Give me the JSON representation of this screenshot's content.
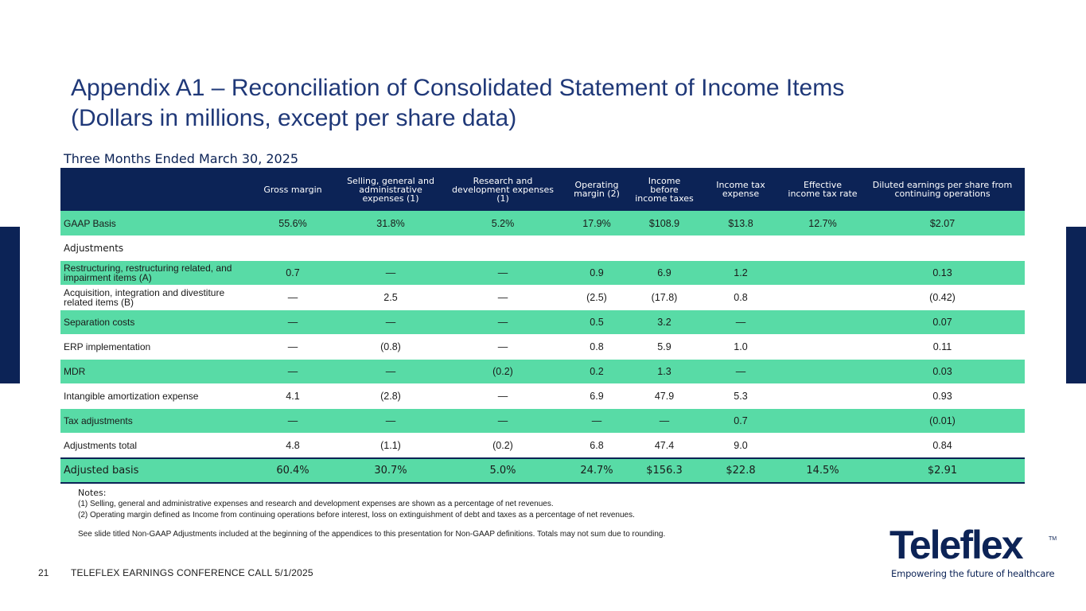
{
  "title": {
    "line1": "Appendix A1 – Reconciliation of Consolidated Statement of Income Items",
    "line2": "(Dollars in millions, except per share data)"
  },
  "period": "Three Months Ended March 30, 2025",
  "table": {
    "headers": [
      "",
      "Gross margin",
      "Selling, general and administrative expenses (1)",
      "Research and development expenses (1)",
      "Operating margin (2)",
      "Income before income taxes",
      "Income tax expense",
      "Effective income tax rate",
      "Diluted earnings per share from continuing operations"
    ],
    "gaap": [
      "GAAP Basis",
      "55.6%",
      "31.8%",
      "5.2%",
      "17.9%",
      "$108.9",
      "$13.8",
      "12.7%",
      "$2.07"
    ],
    "adjustments_label": "Adjustments",
    "rows": [
      [
        "Restructuring, restructuring related, and impairment items (A)",
        "0.7",
        "—",
        "—",
        "0.9",
        "6.9",
        "1.2",
        "",
        "0.13"
      ],
      [
        "Acquisition, integration and divestiture related items (B)",
        "—",
        "2.5",
        "—",
        "(2.5)",
        "(17.8)",
        "0.8",
        "",
        "(0.42)"
      ],
      [
        "Separation costs",
        "—",
        "—",
        "—",
        "0.5",
        "3.2",
        "—",
        "",
        "0.07"
      ],
      [
        "ERP implementation",
        "—",
        "(0.8)",
        "—",
        "0.8",
        "5.9",
        "1.0",
        "",
        "0.11"
      ],
      [
        "MDR",
        "—",
        "—",
        "(0.2)",
        "0.2",
        "1.3",
        "—",
        "",
        "0.03"
      ],
      [
        "Intangible amortization expense",
        "4.1",
        "(2.8)",
        "—",
        "6.9",
        "47.9",
        "5.3",
        "",
        "0.93"
      ],
      [
        "Tax adjustments",
        "—",
        "—",
        "—",
        "—",
        "—",
        "0.7",
        "",
        "(0.01)"
      ],
      [
        "Adjustments total",
        "4.8",
        "(1.1)",
        "(0.2)",
        "6.8",
        "47.4",
        "9.0",
        "",
        "0.84"
      ]
    ],
    "adjusted": [
      "Adjusted basis",
      "60.4%",
      "30.7%",
      "5.0%",
      "24.7%",
      "$156.3",
      "$22.8",
      "14.5%",
      "$2.91"
    ]
  },
  "notes": {
    "heading": "Notes:",
    "n1": "(1) Selling, general and administrative expenses and research and development expenses are shown as a percentage of net revenues.",
    "n2": "(2) Operating margin defined as Income from continuing operations before interest, loss on extinguishment of debt and taxes as a percentage of net revenues.",
    "n3": "See slide titled Non-GAAP Adjustments included at the beginning of the appendices to this presentation for Non-GAAP definitions. Totals may not sum due to rounding."
  },
  "footer": {
    "page_number": "21",
    "text": "TELEFLEX EARNINGS CONFERENCE CALL 5/1/2025"
  },
  "logo": {
    "wordmark": "Teleflex",
    "tm": "TM",
    "tagline": "Empowering the future of healthcare"
  }
}
